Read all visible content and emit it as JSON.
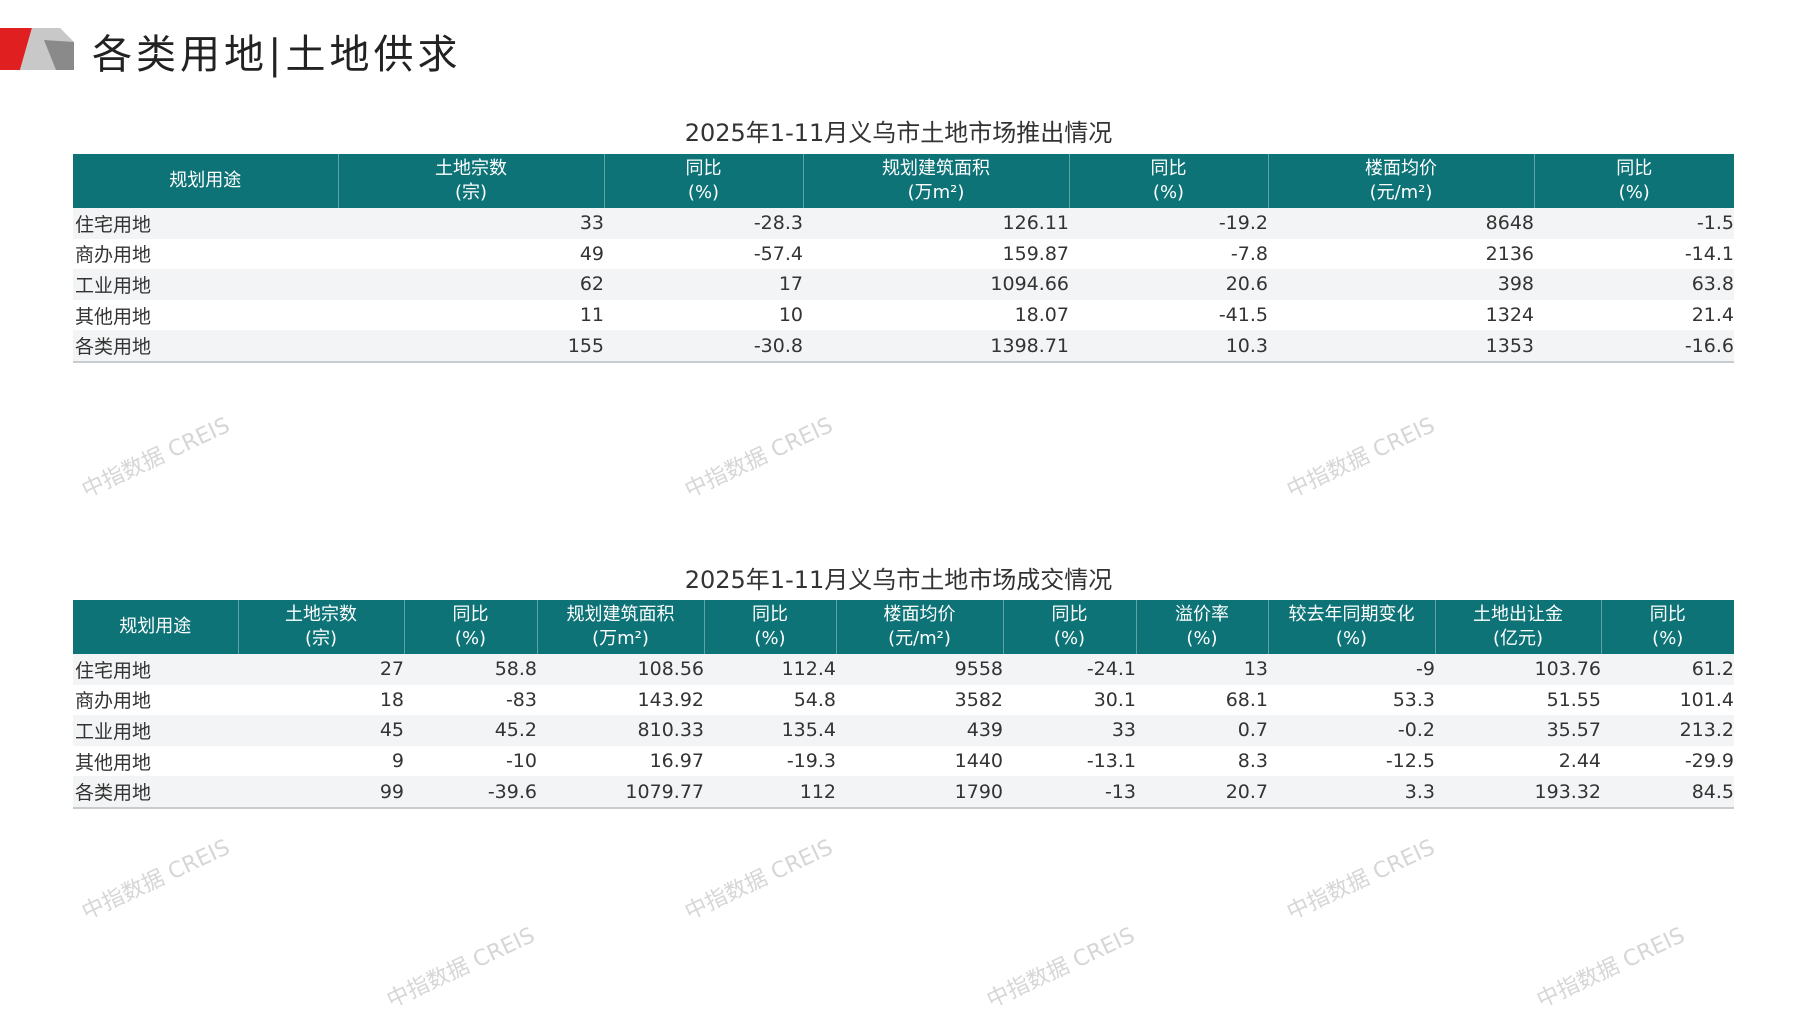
{
  "page": {
    "title": "各类用地|土地供求",
    "accent": "#e02020",
    "header_color": "#0d7377"
  },
  "watermark": "中指数据 CREIS",
  "supply": {
    "title": "2025年1-11月义乌市土地市场推出情况",
    "headers": [
      [
        "规划用途",
        ""
      ],
      [
        "土地宗数",
        "(宗)"
      ],
      [
        "同比",
        "(%)"
      ],
      [
        "规划建筑面积",
        "(万m²)"
      ],
      [
        "同比",
        "(%)"
      ],
      [
        "楼面均价",
        "(元/m²)"
      ],
      [
        "同比",
        "(%)"
      ]
    ],
    "rows": [
      [
        "住宅用地",
        "33",
        "-28.3",
        "126.11",
        "-19.2",
        "8648",
        "-1.5"
      ],
      [
        "商办用地",
        "49",
        "-57.4",
        "159.87",
        "-7.8",
        "2136",
        "-14.1"
      ],
      [
        "工业用地",
        "62",
        "17",
        "1094.66",
        "20.6",
        "398",
        "63.8"
      ],
      [
        "其他用地",
        "11",
        "10",
        "18.07",
        "-41.5",
        "1324",
        "21.4"
      ],
      [
        "各类用地",
        "155",
        "-30.8",
        "1398.71",
        "10.3",
        "1353",
        "-16.6"
      ]
    ]
  },
  "deal": {
    "title": "2025年1-11月义乌市土地市场成交情况",
    "headers": [
      [
        "规划用途",
        ""
      ],
      [
        "土地宗数",
        "(宗)"
      ],
      [
        "同比",
        "(%)"
      ],
      [
        "规划建筑面积",
        "(万m²)"
      ],
      [
        "同比",
        "(%)"
      ],
      [
        "楼面均价",
        "(元/m²)"
      ],
      [
        "同比",
        "(%)"
      ],
      [
        "溢价率",
        "(%)"
      ],
      [
        "较去年同期变化",
        "(%)"
      ],
      [
        "土地出让金",
        "(亿元)"
      ],
      [
        "同比",
        "(%)"
      ]
    ],
    "rows": [
      [
        "住宅用地",
        "27",
        "58.8",
        "108.56",
        "112.4",
        "9558",
        "-24.1",
        "13",
        "-9",
        "103.76",
        "61.2"
      ],
      [
        "商办用地",
        "18",
        "-83",
        "143.92",
        "54.8",
        "3582",
        "30.1",
        "68.1",
        "53.3",
        "51.55",
        "101.4"
      ],
      [
        "工业用地",
        "45",
        "45.2",
        "810.33",
        "135.4",
        "439",
        "33",
        "0.7",
        "-0.2",
        "35.57",
        "213.2"
      ],
      [
        "其他用地",
        "9",
        "-10",
        "16.97",
        "-19.3",
        "1440",
        "-13.1",
        "8.3",
        "-12.5",
        "2.44",
        "-29.9"
      ],
      [
        "各类用地",
        "99",
        "-39.6",
        "1079.77",
        "112",
        "1790",
        "-13",
        "20.7",
        "3.3",
        "193.32",
        "84.5"
      ]
    ]
  }
}
